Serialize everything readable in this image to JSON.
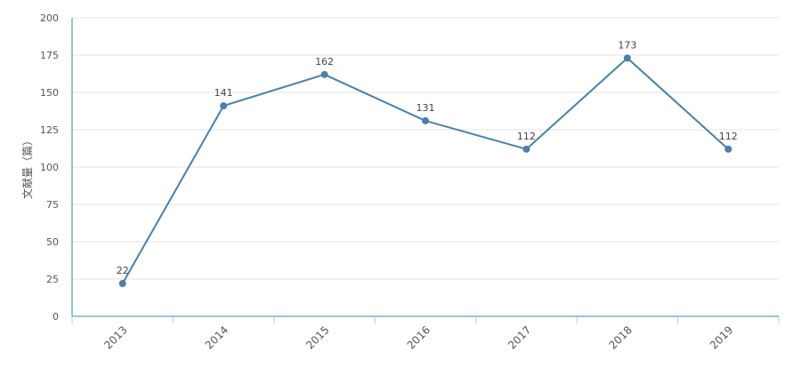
{
  "chart_data": {
    "type": "line",
    "title": "",
    "xlabel": "",
    "ylabel": "文献量（篇）",
    "categories": [
      "2013",
      "2014",
      "2015",
      "2016",
      "2017",
      "2018",
      "2019"
    ],
    "series": [
      {
        "values": [
          22,
          141,
          162,
          131,
          112,
          173,
          112
        ]
      }
    ],
    "ylim": [
      0,
      200
    ],
    "yticks": [
      0,
      25,
      50,
      75,
      100,
      125,
      150,
      175,
      200
    ],
    "grid": true,
    "legend": "none",
    "colors": {
      "line": "#4a7fab",
      "axis": "#2f8f9d",
      "grid": "#e3e3e3"
    }
  }
}
